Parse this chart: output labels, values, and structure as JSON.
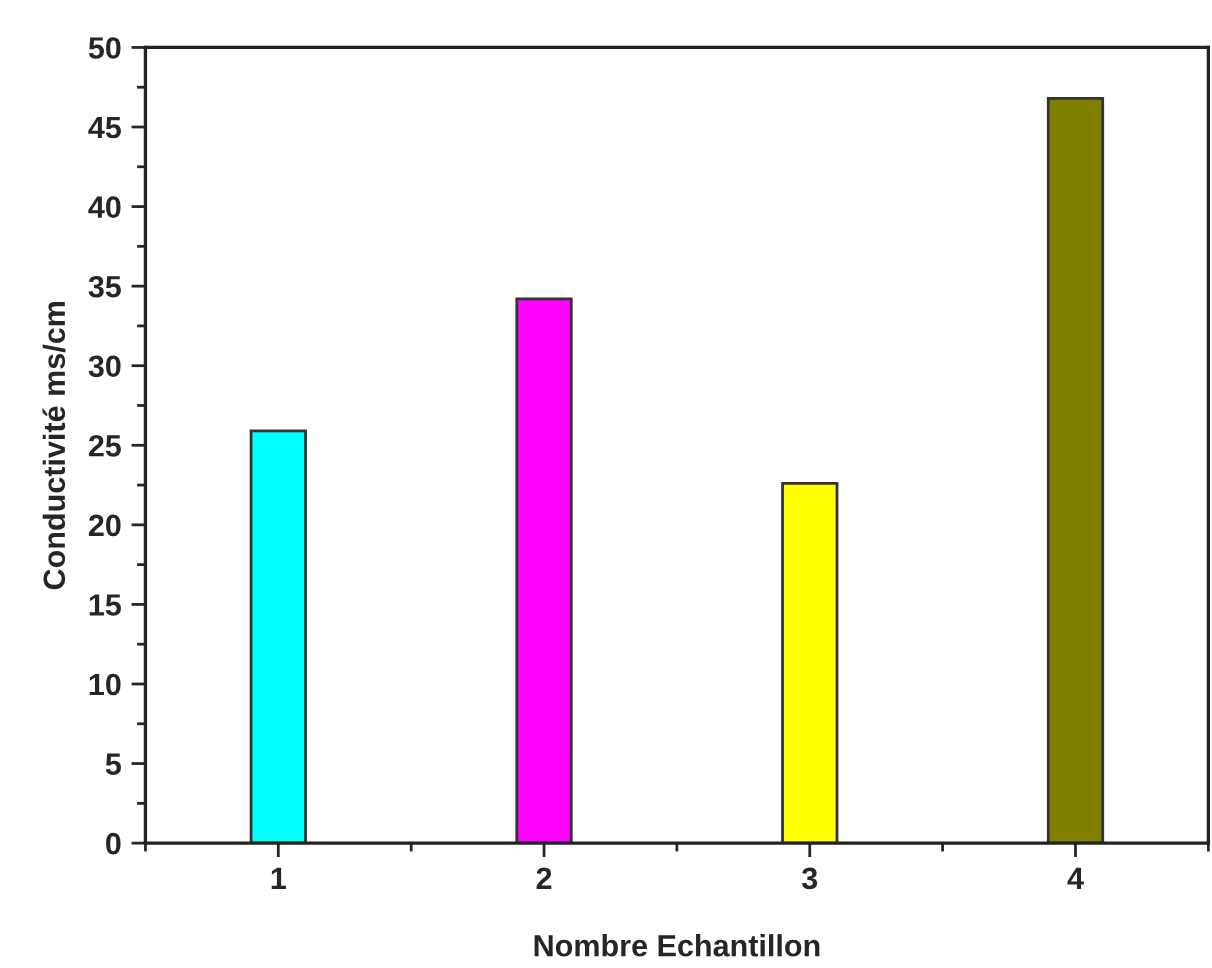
{
  "chart_data": {
    "type": "bar",
    "xlabel": "Nombre Echantillon",
    "ylabel": "Conductivité ms/cm",
    "x": [
      1,
      2,
      3,
      4
    ],
    "values": [
      25.9,
      34.2,
      22.6,
      46.8
    ],
    "colors": [
      "#00ffff",
      "#ff00ff",
      "#ffff00",
      "#808000"
    ],
    "xlim": [
      0.5,
      4.5
    ],
    "xticks": [
      1,
      2,
      3,
      4
    ],
    "ylim": [
      0,
      50
    ],
    "yticks": [
      0,
      5,
      10,
      15,
      20,
      25,
      30,
      35,
      40,
      45,
      50
    ],
    "grid": false
  }
}
